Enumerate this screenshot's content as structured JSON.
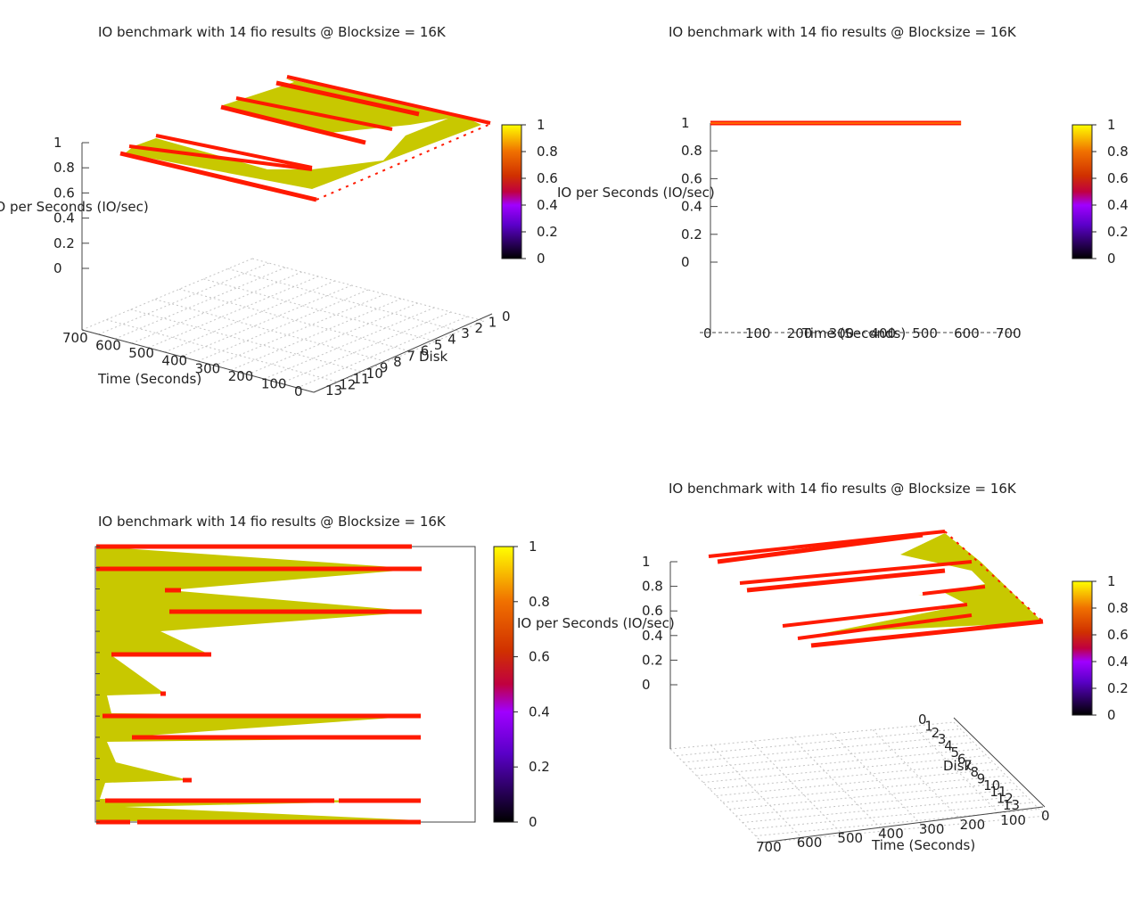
{
  "figure": {
    "colorbar_ticks": [
      "0",
      "0.2",
      "0.4",
      "0.6",
      "0.8",
      "1"
    ],
    "colorbar_ticks_flat": [
      "0",
      "0.2",
      "0.4",
      "0.6",
      "0.8",
      "1"
    ]
  },
  "chart_data": [
    {
      "type": "surface3d",
      "title": "IO benchmark with 14 fio results @ Blocksize = 16K",
      "xlabel": "Time (Seconds)",
      "ylabel": "Disk",
      "zlabel": "IO per Seconds (IO/sec)",
      "xticks": [
        "700",
        "600",
        "500",
        "400",
        "300",
        "200",
        "100",
        "0"
      ],
      "yticks": [
        "13",
        "12",
        "11",
        "10",
        "9",
        "8",
        "7",
        "6",
        "5",
        "4",
        "3",
        "2",
        "1",
        "0"
      ],
      "zticks": [
        "0",
        "0.2",
        "0.4",
        "0.6",
        "0.8",
        "1"
      ],
      "zlim": [
        0,
        1
      ]
    },
    {
      "type": "line",
      "title": "IO benchmark with 14 fio results @ Blocksize = 16K",
      "xlabel": "Time (Seconds)",
      "ylabel": "IO per Seconds (IO/sec)",
      "xticks": [
        "0",
        "100",
        "200",
        "300",
        "400",
        "500",
        "600",
        "700"
      ],
      "yticks": [
        "0",
        "0.2",
        "0.4",
        "0.6",
        "0.8",
        "1"
      ],
      "xlim": [
        0,
        700
      ],
      "ylim": [
        0,
        1
      ],
      "x": [
        0,
        600
      ],
      "y": [
        1,
        1
      ]
    },
    {
      "type": "heatmap",
      "title": "IO benchmark with 14 fio results @ Blocksize = 16K",
      "colorbar_label": "IO per Seconds (IO/sec)"
    },
    {
      "type": "surface3d",
      "title": "IO benchmark with 14 fio results @ Blocksize = 16K",
      "xlabel": "Time (Seconds)",
      "ylabel": "Disk",
      "zlabel": "",
      "xticks": [
        "700",
        "600",
        "500",
        "400",
        "300",
        "200",
        "100",
        "0"
      ],
      "yticks": [
        "0",
        "1",
        "2",
        "3",
        "4",
        "5",
        "6",
        "7",
        "8",
        "9",
        "10",
        "11",
        "12",
        "13"
      ],
      "zticks": [
        "0",
        "0.2",
        "0.4",
        "0.6",
        "0.8",
        "1"
      ],
      "zlim": [
        0,
        1
      ]
    }
  ],
  "colors": {
    "fill": "#c8c800",
    "edge": "#ff1a00",
    "edge_hi": "#ffb000",
    "grid": "#bdbdbd",
    "axis": "#444444"
  }
}
